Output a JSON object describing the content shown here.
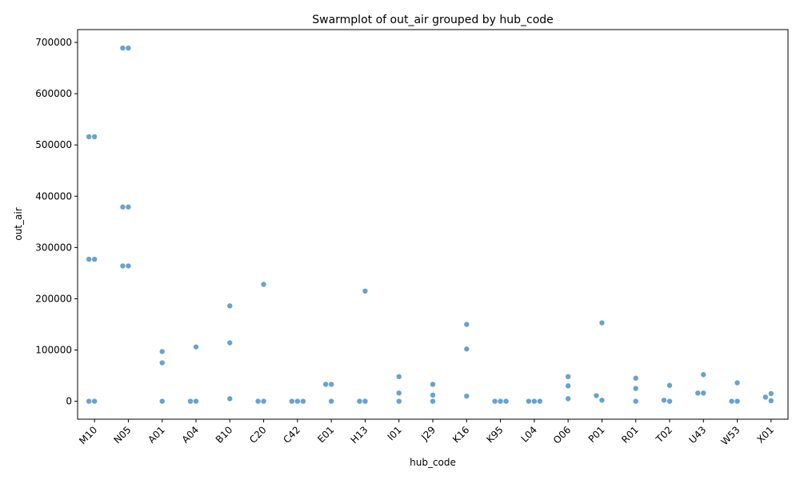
{
  "chart_data": {
    "type": "scatter",
    "title": "Swarmplot of out_air grouped by hub_code",
    "xlabel": "hub_code",
    "ylabel": "out_air",
    "ylim": [
      -35000,
      725000
    ],
    "yticks": [
      0,
      100000,
      200000,
      300000,
      400000,
      500000,
      600000,
      700000
    ],
    "grid": false,
    "point_color": "#5f9ec9",
    "categories": [
      "M10",
      "N05",
      "A01",
      "A04",
      "B10",
      "C20",
      "C42",
      "E01",
      "H13",
      "I01",
      "J29",
      "K16",
      "K95",
      "L04",
      "O06",
      "P01",
      "R01",
      "T02",
      "U43",
      "W53",
      "X01"
    ],
    "points": [
      {
        "category": "M10",
        "values": [
          0,
          0,
          277000,
          277000,
          516000,
          516000
        ]
      },
      {
        "category": "N05",
        "values": [
          264000,
          264000,
          379000,
          379000,
          689000,
          689000
        ]
      },
      {
        "category": "A01",
        "values": [
          0,
          75000,
          97000
        ]
      },
      {
        "category": "A04",
        "values": [
          0,
          0,
          106000
        ]
      },
      {
        "category": "B10",
        "values": [
          5000,
          114000,
          186000
        ]
      },
      {
        "category": "C20",
        "values": [
          0,
          0,
          228000
        ]
      },
      {
        "category": "C42",
        "values": [
          0,
          0,
          0
        ]
      },
      {
        "category": "E01",
        "values": [
          0,
          33000,
          33000
        ]
      },
      {
        "category": "H13",
        "values": [
          0,
          0,
          215000
        ]
      },
      {
        "category": "I01",
        "values": [
          0,
          16000,
          48000
        ]
      },
      {
        "category": "J29",
        "values": [
          0,
          12000,
          33000
        ]
      },
      {
        "category": "K16",
        "values": [
          10000,
          102000,
          150000
        ]
      },
      {
        "category": "K95",
        "values": [
          0,
          0,
          0
        ]
      },
      {
        "category": "L04",
        "values": [
          0,
          0,
          0
        ]
      },
      {
        "category": "O06",
        "values": [
          5000,
          30000,
          48000
        ]
      },
      {
        "category": "P01",
        "values": [
          2000,
          11000,
          153000
        ]
      },
      {
        "category": "R01",
        "values": [
          0,
          25000,
          45000
        ]
      },
      {
        "category": "T02",
        "values": [
          0,
          2000,
          31000
        ]
      },
      {
        "category": "U43",
        "values": [
          16000,
          16000,
          52000
        ]
      },
      {
        "category": "W53",
        "values": [
          0,
          0,
          36000
        ]
      },
      {
        "category": "X01",
        "values": [
          1000,
          8000,
          15000
        ]
      }
    ]
  }
}
